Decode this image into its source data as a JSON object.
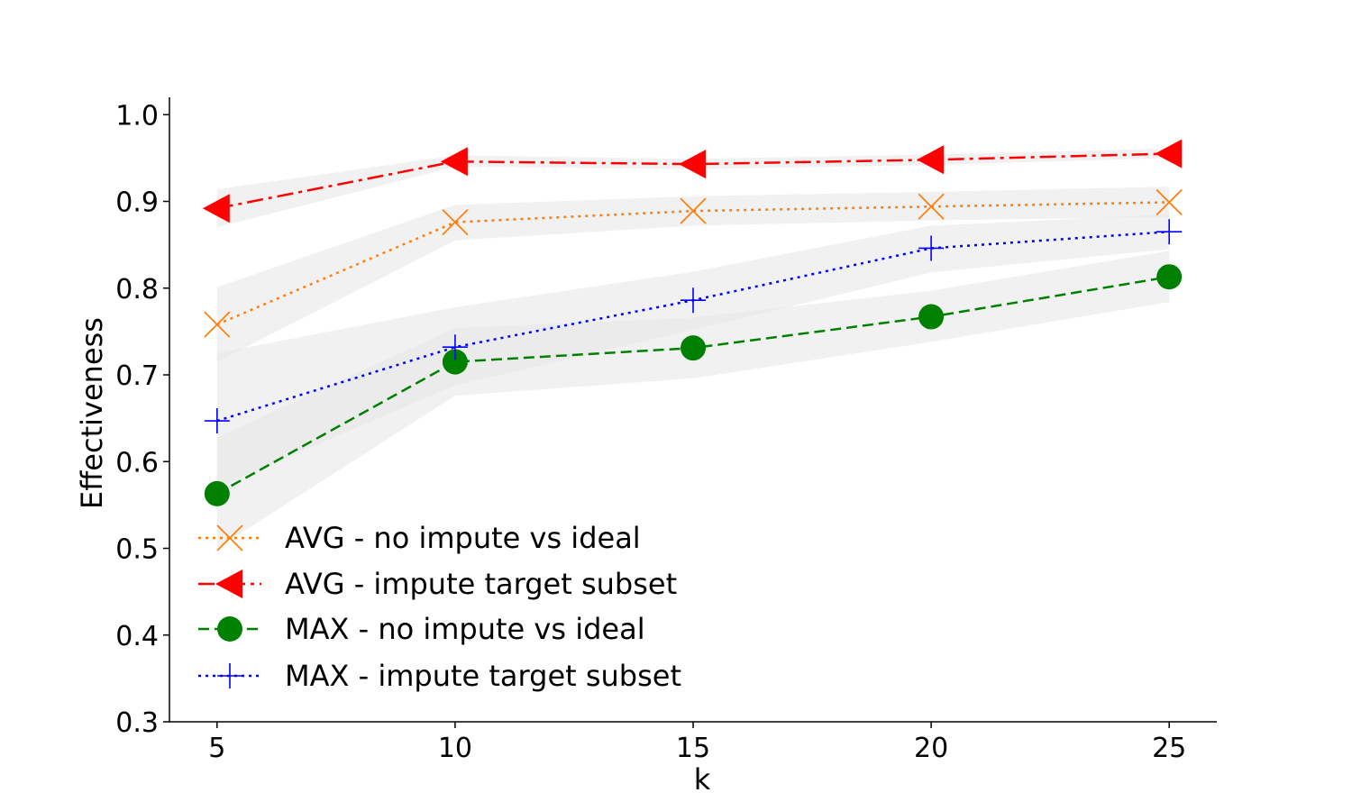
{
  "chart_data": {
    "type": "line",
    "xlabel": "k",
    "ylabel": "Effectiveness",
    "x": [
      5,
      10,
      15,
      20,
      25
    ],
    "x_ticks": [
      "5",
      "10",
      "15",
      "20",
      "25"
    ],
    "xlim": [
      4,
      26
    ],
    "ylim": [
      0.3,
      1.02
    ],
    "y_ticks": [
      "0.3",
      "0.4",
      "0.5",
      "0.6",
      "0.7",
      "0.8",
      "0.9",
      "1.0"
    ],
    "grid": false,
    "legend_position": "lower-left",
    "band_color": "#e6e6e6",
    "series": [
      {
        "name": "AVG - no impute vs ideal",
        "values": [
          0.758,
          0.876,
          0.889,
          0.894,
          0.899
        ],
        "band_low": [
          0.715,
          0.855,
          0.872,
          0.878,
          0.882
        ],
        "band_high": [
          0.801,
          0.896,
          0.906,
          0.911,
          0.917
        ],
        "color": "#ff7f0e",
        "line_style": "dotted",
        "marker": "x"
      },
      {
        "name": "AVG - impute target subset",
        "values": [
          0.892,
          0.946,
          0.943,
          0.948,
          0.955
        ],
        "band_low": [
          0.87,
          0.94,
          0.937,
          0.942,
          0.95
        ],
        "band_high": [
          0.914,
          0.953,
          0.949,
          0.954,
          0.961
        ],
        "color": "#ff0000",
        "line_style": "dashdot",
        "marker": "triangle-left"
      },
      {
        "name": "MAX - no impute vs ideal",
        "values": [
          0.563,
          0.715,
          0.731,
          0.767,
          0.813
        ],
        "band_low": [
          0.5,
          0.676,
          0.696,
          0.738,
          0.784
        ],
        "band_high": [
          0.628,
          0.754,
          0.766,
          0.797,
          0.843
        ],
        "color": "#008000",
        "line_style": "dashed",
        "marker": "circle"
      },
      {
        "name": "MAX - impute target subset",
        "values": [
          0.647,
          0.732,
          0.786,
          0.846,
          0.865
        ],
        "band_low": [
          0.57,
          0.688,
          0.752,
          0.818,
          0.845
        ],
        "band_high": [
          0.725,
          0.778,
          0.819,
          0.872,
          0.885
        ],
        "color": "#0000ff",
        "line_style": "dotted",
        "marker": "plus"
      }
    ]
  }
}
